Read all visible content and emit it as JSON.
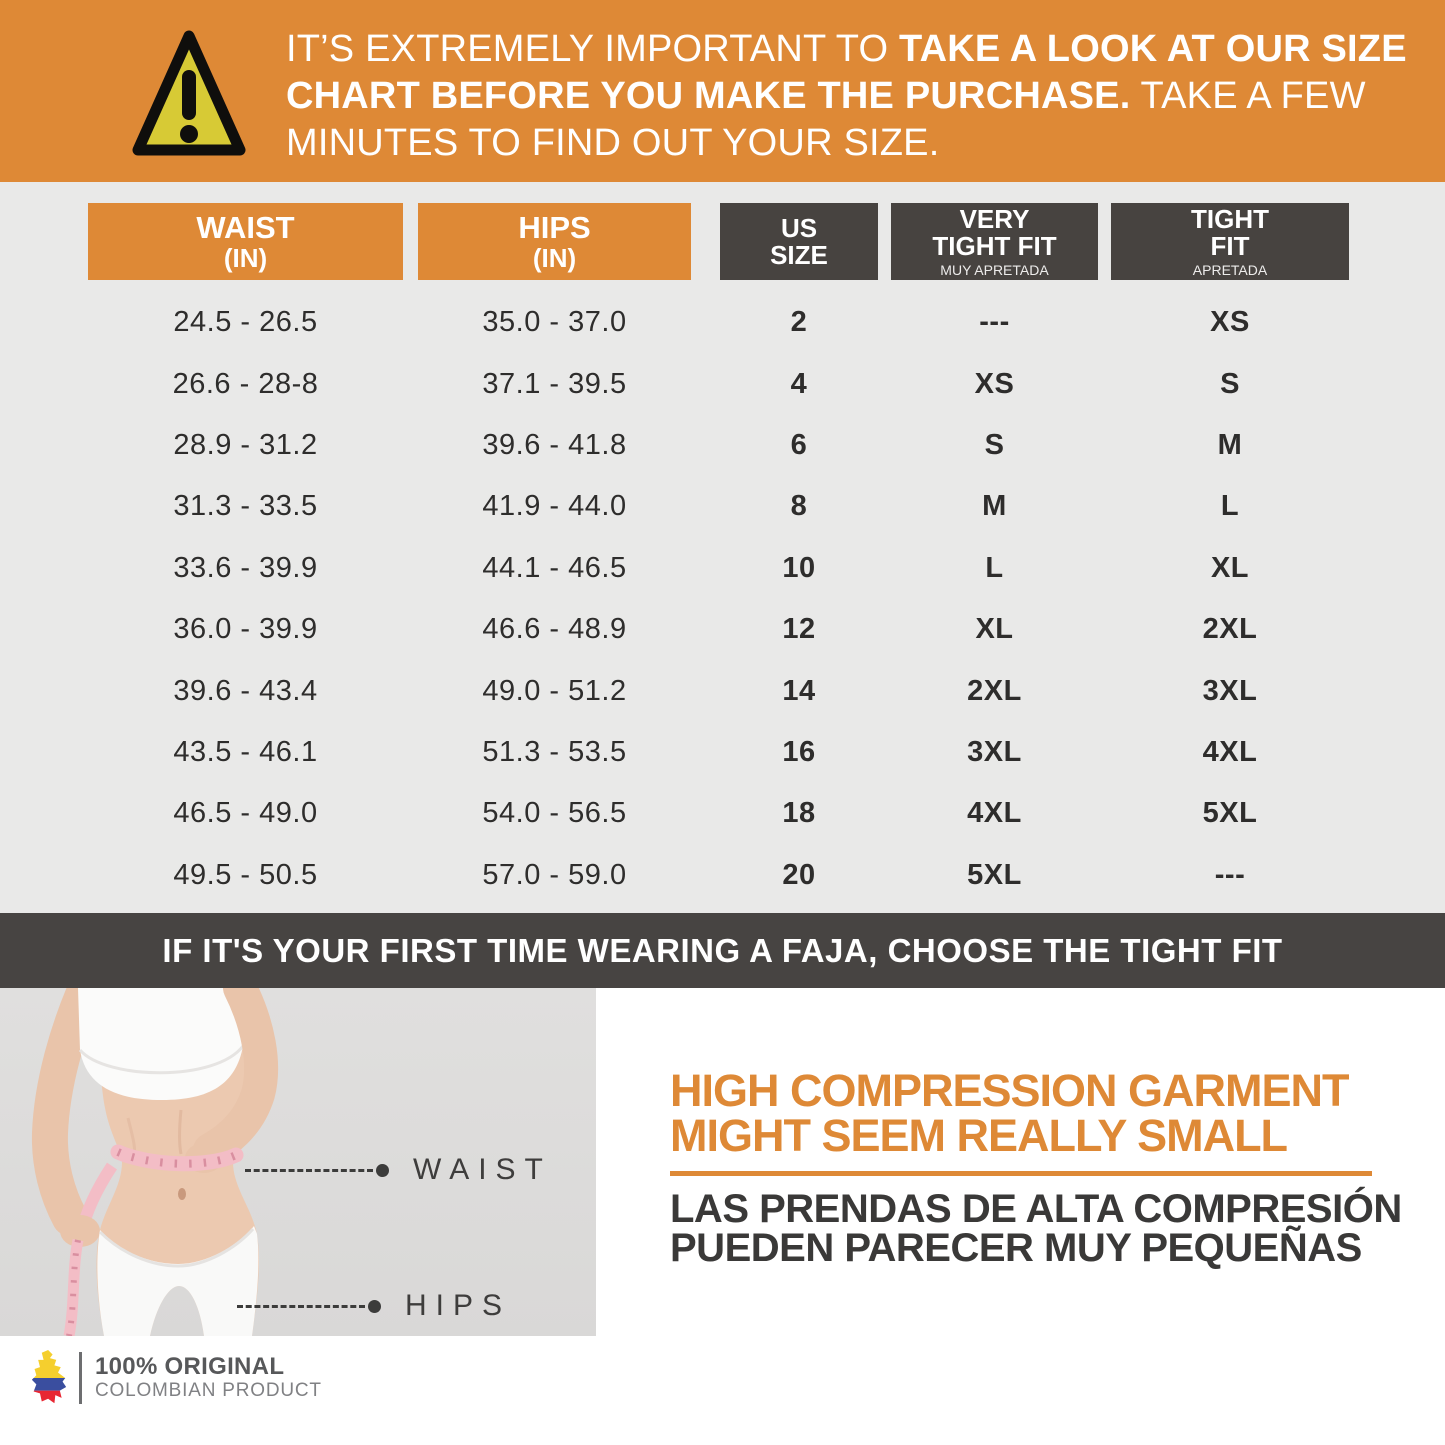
{
  "top_banner": {
    "part1": "IT’S EXTREMELY IMPORTANT TO ",
    "part2": "TAKE A LOOK AT OUR SIZE CHART BEFORE YOU MAKE THE PURCHASE.",
    "part3": " TAKE A FEW MINUTES TO FIND OUT YOUR SIZE.",
    "icon": "warning-triangle-icon"
  },
  "chart_data": {
    "type": "table",
    "title": "Faja size chart",
    "columns": [
      "WAIST (IN)",
      "HIPS (IN)",
      "US SIZE",
      "VERY TIGHT FIT (MUY APRETADA)",
      "TIGHT FIT (APRETADA)"
    ],
    "headers": {
      "waist": {
        "title": "WAIST",
        "unit": "(IN)"
      },
      "hips": {
        "title": "HIPS",
        "unit": "(IN)"
      },
      "us": {
        "line1": "US",
        "line2": "SIZE"
      },
      "very_tight": {
        "line1": "VERY",
        "line2": "TIGHT FIT",
        "sub": "MUY APRETADA"
      },
      "tight": {
        "line1": "TIGHT",
        "line2": "FIT",
        "sub": "APRETADA"
      }
    },
    "rows": [
      [
        "24.5 - 26.5",
        "35.0 - 37.0",
        "2",
        "---",
        "XS"
      ],
      [
        "26.6 - 28-8",
        "37.1 - 39.5",
        "4",
        "XS",
        "S"
      ],
      [
        "28.9 - 31.2",
        "39.6 - 41.8",
        "6",
        "S",
        "M"
      ],
      [
        "31.3 - 33.5",
        "41.9 - 44.0",
        "8",
        "M",
        "L"
      ],
      [
        "33.6 - 39.9",
        "44.1 - 46.5",
        "10",
        "L",
        "XL"
      ],
      [
        "36.0 - 39.9",
        "46.6 - 48.9",
        "12",
        "XL",
        "2XL"
      ],
      [
        "39.6 - 43.4",
        "49.0 - 51.2",
        "14",
        "2XL",
        "3XL"
      ],
      [
        "43.5 - 46.1",
        "51.3 - 53.5",
        "16",
        "3XL",
        "4XL"
      ],
      [
        "46.5 - 49.0",
        "54.0 - 56.5",
        "18",
        "4XL",
        "5XL"
      ],
      [
        "49.5 - 50.5",
        "57.0 - 59.0",
        "20",
        "5XL",
        "---"
      ]
    ]
  },
  "tip_banner": {
    "text": "IF IT'S YOUR FIRST TIME WEARING A FAJA, CHOOSE THE TIGHT FIT"
  },
  "measure_guide": {
    "waist_label": "WAIST",
    "hips_label": "HIPS",
    "photo": "woman-measuring-waist-photo"
  },
  "promo": {
    "headline1": "HIGH COMPRESSION GARMENT",
    "headline2": "MIGHT SEEM REALLY SMALL",
    "sub1": "LAS PRENDAS DE ALTA COMPRESIÓN",
    "sub2": "PUEDEN PARECER MUY PEQUEÑAS"
  },
  "footer": {
    "title": "100% ORIGINAL",
    "subtitle": "COLOMBIAN PRODUCT",
    "icon": "colombia-map-icon"
  },
  "colors": {
    "orange": "#DE8936",
    "dark_gray": "#474340",
    "banner_dark": "#474442",
    "page_gray": "#E9E9E8",
    "photo_gray": "#DCDCDB",
    "text_dark": "#2E2D2C",
    "triangle_yellow": "#D7CA35",
    "flag_yellow": "#F5CF2E",
    "flag_blue": "#3A4E9F",
    "flag_red": "#E82732"
  }
}
